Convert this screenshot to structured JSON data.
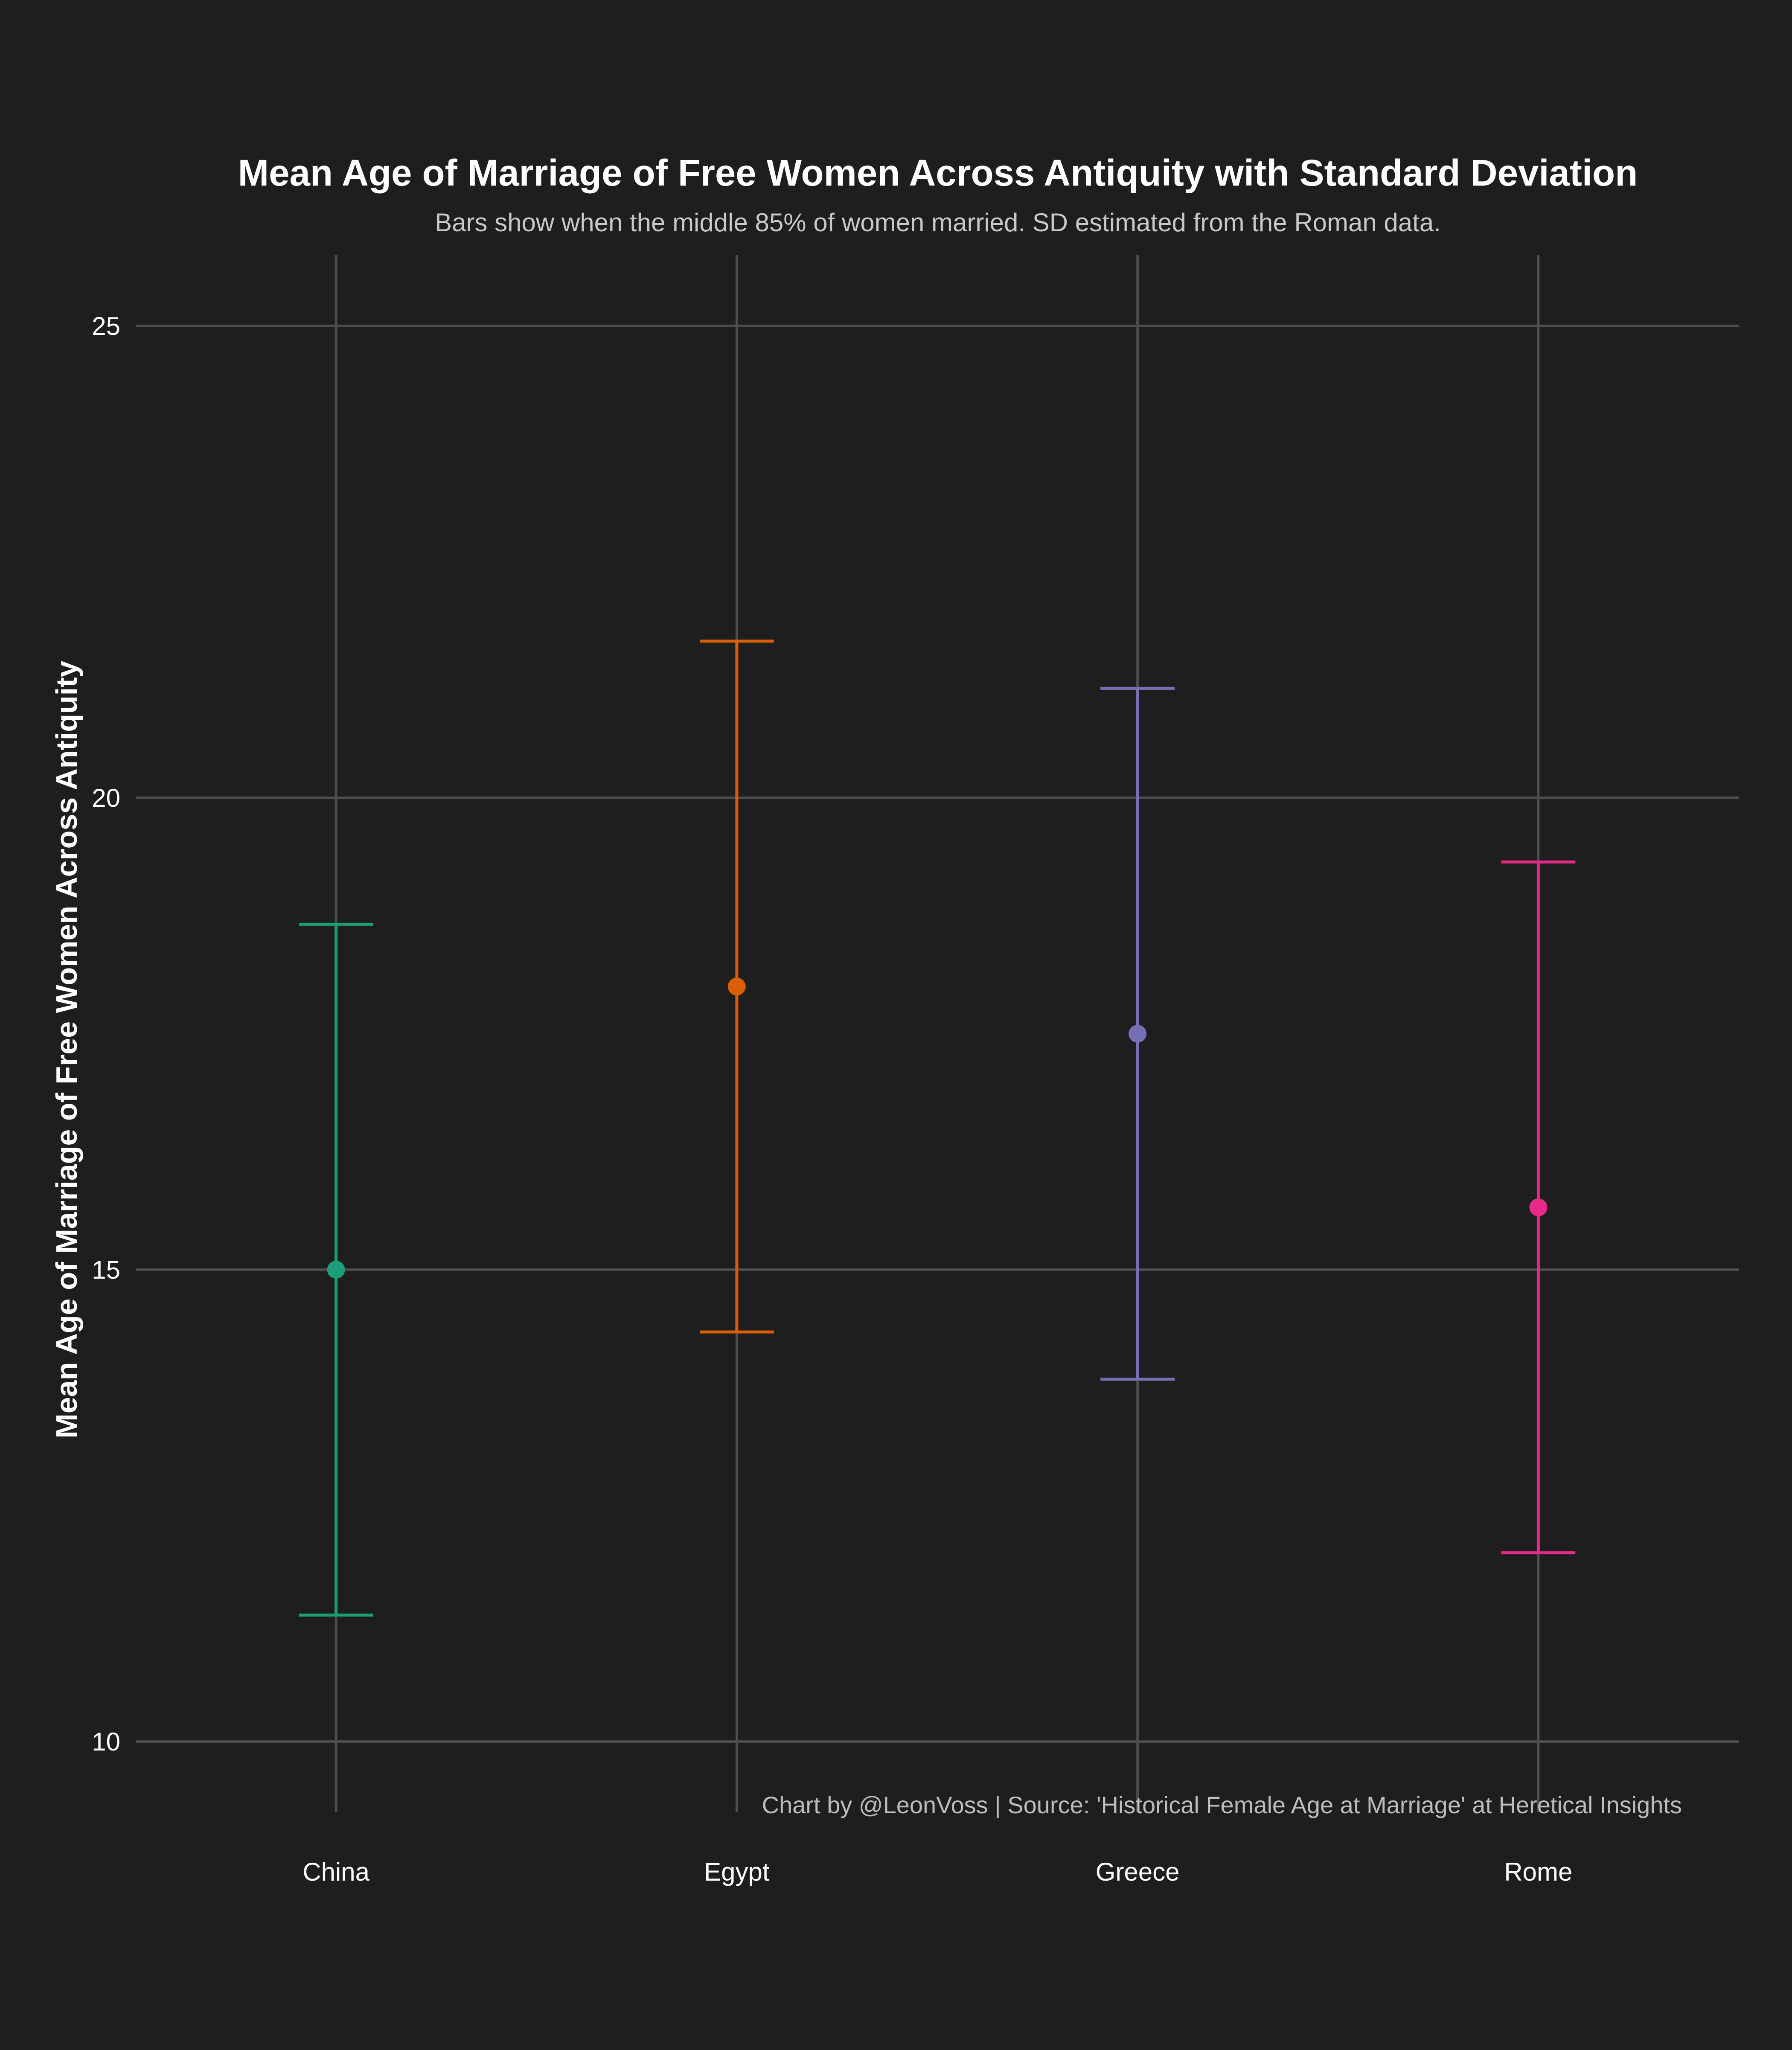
{
  "chart_data": {
    "type": "scatter",
    "title": "Mean Age of Marriage of Free Women Across Antiquity with Standard Deviation",
    "subtitle": "Bars show when the middle 85% of women married. SD estimated from the Roman data.",
    "xlabel": "",
    "ylabel": "Mean Age of Marriage of Free Women Across Antiquity",
    "caption": "Chart by @LeonVoss | Source: 'Historical Female Age at Marriage' at Heretical Insights",
    "categories": [
      "China",
      "Egypt",
      "Greece",
      "Rome"
    ],
    "y_ticks": [
      10,
      15,
      20,
      25
    ],
    "ylim": [
      9.25,
      25.75
    ],
    "grid": true,
    "legend": "none",
    "series": [
      {
        "category": "China",
        "mean": 15.0,
        "low": 11.34,
        "high": 18.66,
        "color": "#1b9e77"
      },
      {
        "category": "Egypt",
        "mean": 18.0,
        "low": 14.34,
        "high": 21.66,
        "color": "#d95f02"
      },
      {
        "category": "Greece",
        "mean": 17.5,
        "low": 13.84,
        "high": 21.16,
        "color": "#7570b3"
      },
      {
        "category": "Rome",
        "mean": 15.66,
        "low": 12.0,
        "high": 19.32,
        "color": "#e7298a"
      }
    ]
  }
}
